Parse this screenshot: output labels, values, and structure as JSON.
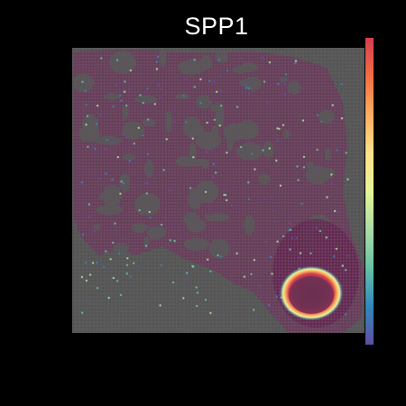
{
  "figure": {
    "title": "SPP1",
    "background_color": "#000000",
    "tissue_color": "#6b2f52",
    "slide_color": "#5a5a5a",
    "spot_color": "#7a4d78",
    "colormap": [
      "#5e4fa2",
      "#3288bd",
      "#66c2a5",
      "#abdda4",
      "#e6f598",
      "#fee08b",
      "#fdae61",
      "#f46d43",
      "#d53e4f"
    ],
    "colorbar_visible": true,
    "colorbar_tick_labels_visible": false,
    "hotspot_region": "bottom-right"
  }
}
